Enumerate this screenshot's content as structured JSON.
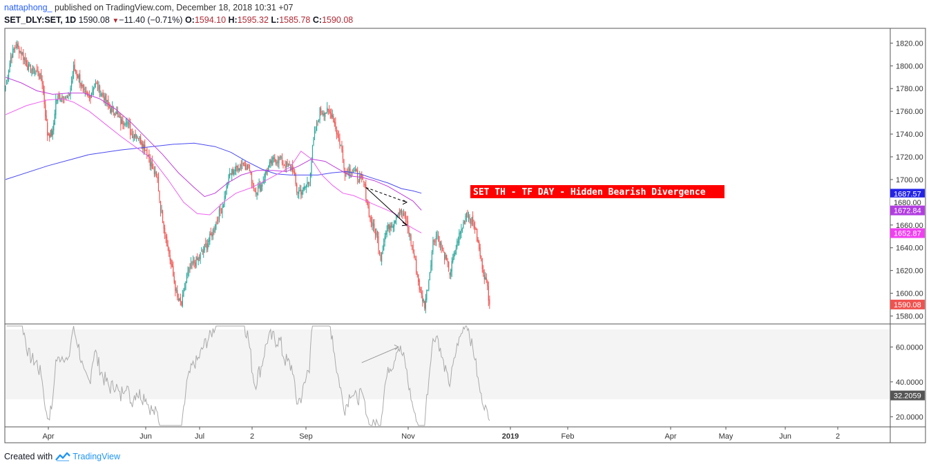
{
  "header": {
    "author": "nattaphong_",
    "published_text": "published on TradingView.com, December 18, 2018 10:31 +07"
  },
  "symbol_line": {
    "symbol": "SET_DLY:SET, 1D",
    "last": "1590.08",
    "change": "−11.40 (−0.71%)",
    "o_label": "O:",
    "o_value": "1594.10",
    "h_label": "H:",
    "h_value": "1595.32",
    "l_label": "L:",
    "l_value": "1585.78",
    "c_label": "C:",
    "c_value": "1590.08"
  },
  "footer": {
    "created_with": "Created with",
    "brand": "TradingView"
  },
  "colors": {
    "up": "#26a69a",
    "down": "#ef5350",
    "ma_blue": "#4a4af0",
    "ma_purple": "#c03cdc",
    "ma_magenta": "#f060f0",
    "annotation_bg": "#ff0000",
    "rsi": "#aaaaaa"
  },
  "chart_data": [
    {
      "type": "candlestick",
      "annotation": "SET TH - TF DAY - Hidden Bearish Divergence",
      "yaxis_ticks": [
        "1820.00",
        "1800.00",
        "1780.00",
        "1760.00",
        "1740.00",
        "1720.00",
        "1700.00",
        "1680.00",
        "1660.00",
        "1640.00",
        "1620.00",
        "1600.00",
        "1580.00"
      ],
      "ylim": [
        1573,
        1833
      ],
      "xaxis_ticks": [
        "Apr",
        "Jun",
        "Jul",
        "2",
        "Sep",
        "Nov",
        "2019",
        "Feb",
        "Apr",
        "May",
        "Jun",
        "2"
      ],
      "price_labels": [
        {
          "value": "1687.57",
          "color": "#2424e8"
        },
        {
          "value": "1680.00",
          "color": "#ffffff"
        },
        {
          "value": "1672.84",
          "color": "#b23ee0"
        },
        {
          "value": "1652.87",
          "color": "#f040f0"
        },
        {
          "value": "1590.08",
          "color": "#ef5350"
        }
      ],
      "moving_averages": [
        {
          "color": "#4a4af0",
          "last": 1687.57,
          "points": [
            [
              0,
              1700
            ],
            [
              40,
              1712
            ],
            [
              80,
              1722
            ],
            [
              110,
              1726
            ],
            [
              140,
              1729
            ],
            [
              160,
              1731
            ],
            [
              180,
              1732
            ],
            [
              200,
              1729
            ],
            [
              215,
              1724
            ],
            [
              230,
              1716
            ],
            [
              245,
              1709
            ],
            [
              258,
              1705
            ],
            [
              272,
              1704
            ],
            [
              285,
              1704
            ],
            [
              298,
              1704
            ],
            [
              312,
              1706
            ],
            [
              325,
              1707
            ],
            [
              338,
              1705
            ],
            [
              351,
              1701
            ],
            [
              365,
              1697
            ],
            [
              378,
              1692
            ],
            [
              389,
              1690
            ],
            [
              397,
              1688
            ]
          ]
        },
        {
          "color": "#c03cdc",
          "last": 1672.84,
          "points": [
            [
              0,
              1790
            ],
            [
              15,
              1785
            ],
            [
              30,
              1778
            ],
            [
              45,
              1775
            ],
            [
              60,
              1776
            ],
            [
              75,
              1776
            ],
            [
              90,
              1771
            ],
            [
              105,
              1762
            ],
            [
              120,
              1750
            ],
            [
              135,
              1736
            ],
            [
              150,
              1722
            ],
            [
              165,
              1706
            ],
            [
              180,
              1693
            ],
            [
              190,
              1685
            ],
            [
              200,
              1688
            ],
            [
              212,
              1697
            ],
            [
              225,
              1704
            ],
            [
              240,
              1708
            ],
            [
              255,
              1708
            ],
            [
              268,
              1707
            ],
            [
              280,
              1712
            ],
            [
              292,
              1718
            ],
            [
              305,
              1716
            ],
            [
              318,
              1709
            ],
            [
              330,
              1703
            ],
            [
              340,
              1702
            ],
            [
              352,
              1699
            ],
            [
              365,
              1694
            ],
            [
              378,
              1687
            ],
            [
              389,
              1681
            ],
            [
              397,
              1673
            ]
          ]
        },
        {
          "color": "#f060f0",
          "last": 1652.87,
          "points": [
            [
              0,
              1757
            ],
            [
              20,
              1765
            ],
            [
              40,
              1770
            ],
            [
              55,
              1771
            ],
            [
              65,
              1768
            ],
            [
              80,
              1760
            ],
            [
              95,
              1749
            ],
            [
              110,
              1738
            ],
            [
              125,
              1728
            ],
            [
              140,
              1718
            ],
            [
              155,
              1700
            ],
            [
              170,
              1680
            ],
            [
              183,
              1670
            ],
            [
              195,
              1669
            ],
            [
              208,
              1680
            ],
            [
              220,
              1688
            ],
            [
              235,
              1693
            ],
            [
              250,
              1700
            ],
            [
              262,
              1706
            ],
            [
              272,
              1711
            ],
            [
              282,
              1725
            ],
            [
              292,
              1718
            ],
            [
              302,
              1704
            ],
            [
              312,
              1695
            ],
            [
              322,
              1688
            ],
            [
              332,
              1686
            ],
            [
              342,
              1682
            ],
            [
              352,
              1678
            ],
            [
              362,
              1674
            ],
            [
              372,
              1670
            ],
            [
              380,
              1662
            ],
            [
              389,
              1657
            ],
            [
              397,
              1653
            ]
          ]
        }
      ],
      "close_path": [
        [
          0,
          1782
        ],
        [
          5,
          1808
        ],
        [
          10,
          1818
        ],
        [
          15,
          1812
        ],
        [
          22,
          1798
        ],
        [
          30,
          1795
        ],
        [
          35,
          1786
        ],
        [
          40,
          1740
        ],
        [
          45,
          1740
        ],
        [
          48,
          1770
        ],
        [
          55,
          1775
        ],
        [
          60,
          1770
        ],
        [
          65,
          1798
        ],
        [
          70,
          1790
        ],
        [
          75,
          1775
        ],
        [
          80,
          1772
        ],
        [
          85,
          1785
        ],
        [
          90,
          1778
        ],
        [
          95,
          1770
        ],
        [
          100,
          1762
        ],
        [
          105,
          1760
        ],
        [
          110,
          1750
        ],
        [
          115,
          1753
        ],
        [
          120,
          1740
        ],
        [
          125,
          1740
        ],
        [
          130,
          1733
        ],
        [
          135,
          1725
        ],
        [
          140,
          1710
        ],
        [
          145,
          1700
        ],
        [
          148,
          1675
        ],
        [
          152,
          1655
        ],
        [
          158,
          1625
        ],
        [
          164,
          1595
        ],
        [
          168,
          1590
        ],
        [
          173,
          1615
        ],
        [
          178,
          1625
        ],
        [
          184,
          1630
        ],
        [
          190,
          1640
        ],
        [
          196,
          1650
        ],
        [
          202,
          1665
        ],
        [
          208,
          1680
        ],
        [
          214,
          1705
        ],
        [
          220,
          1710
        ],
        [
          226,
          1715
        ],
        [
          232,
          1710
        ],
        [
          238,
          1690
        ],
        [
          244,
          1695
        ],
        [
          250,
          1710
        ],
        [
          256,
          1717
        ],
        [
          262,
          1718
        ],
        [
          268,
          1712
        ],
        [
          274,
          1710
        ],
        [
          278,
          1690
        ],
        [
          284,
          1690
        ],
        [
          290,
          1700
        ],
        [
          294,
          1735
        ],
        [
          300,
          1760
        ],
        [
          306,
          1760
        ],
        [
          312,
          1757
        ],
        [
          316,
          1742
        ],
        [
          320,
          1730
        ],
        [
          324,
          1707
        ],
        [
          330,
          1710
        ],
        [
          336,
          1703
        ],
        [
          342,
          1697
        ],
        [
          348,
          1665
        ],
        [
          354,
          1652
        ],
        [
          358,
          1632
        ],
        [
          362,
          1650
        ],
        [
          366,
          1660
        ],
        [
          370,
          1662
        ],
        [
          374,
          1672
        ],
        [
          378,
          1670
        ],
        [
          382,
          1665
        ],
        [
          386,
          1650
        ],
        [
          390,
          1632
        ],
        [
          396,
          1600
        ],
        [
          400,
          1590
        ],
        [
          404,
          1612
        ],
        [
          408,
          1645
        ],
        [
          412,
          1652
        ],
        [
          416,
          1640
        ],
        [
          420,
          1630
        ],
        [
          424,
          1618
        ],
        [
          428,
          1632
        ],
        [
          432,
          1648
        ],
        [
          436,
          1658
        ],
        [
          440,
          1672
        ],
        [
          444,
          1665
        ],
        [
          448,
          1658
        ],
        [
          452,
          1638
        ],
        [
          456,
          1620
        ],
        [
          460,
          1605
        ],
        [
          462,
          1590
        ]
      ],
      "divergence_price": {
        "line": [
          [
            344,
            1693
          ],
          [
            383,
            1660
          ]
        ],
        "dashed": [
          [
            344,
            1693
          ],
          [
            383,
            1680
          ]
        ]
      },
      "rsi": {
        "ylim": [
          15,
          72
        ],
        "ticks": [
          "60.0000",
          "40.0000",
          "20.0000"
        ],
        "band": [
          30,
          70
        ],
        "last_label": "32.2059",
        "divergence": [
          [
            340,
            51
          ],
          [
            375,
            60
          ]
        ]
      }
    }
  ]
}
